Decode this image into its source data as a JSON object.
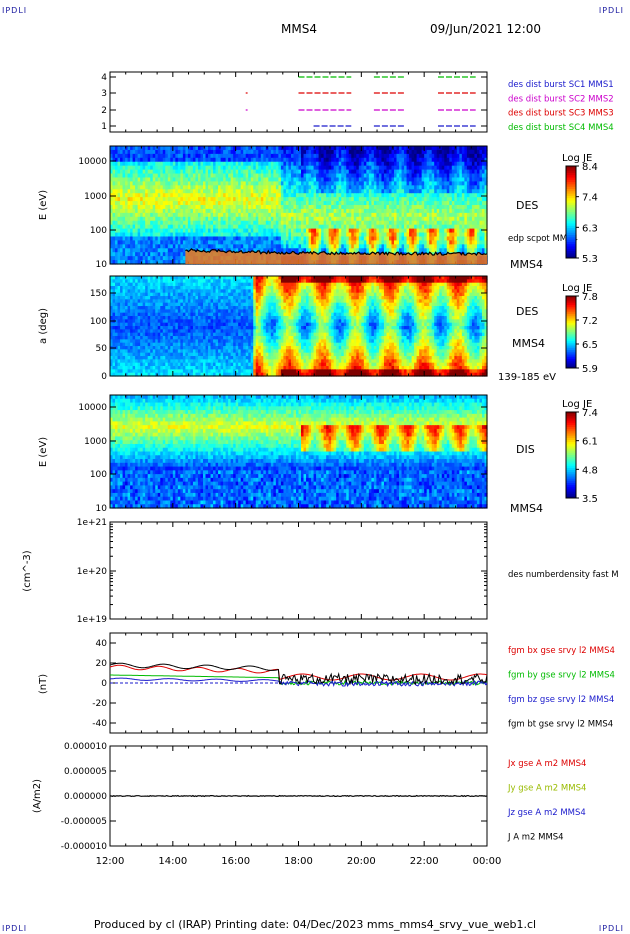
{
  "header": {
    "corner_text": "IPDLI",
    "spacecraft": "MMS4",
    "date": "09/Jun/2021 12:00"
  },
  "footer": {
    "text": "Produced by cl (IRAP)   Printing date: 04/Dec/2023   mms_mms4_srvy_vue_web1.cl"
  },
  "chart_data": [
    {
      "panel": "burst",
      "type": "line",
      "yticks": [
        "1",
        "2",
        "3",
        "4"
      ],
      "legend": [
        {
          "label": "des dist burst SC1 MMS1",
          "color": "#1a1acc"
        },
        {
          "label": "des dist burst SC2 MMS2",
          "color": "#cc00cc"
        },
        {
          "label": "des dist burst SC3 MMS3",
          "color": "#dd0000"
        },
        {
          "label": "des dist burst SC4 MMS4",
          "color": "#00bb00"
        }
      ]
    },
    {
      "panel": "des_energy",
      "type": "heatmap",
      "ylabel": "E (eV)",
      "ylog": true,
      "ylim": [
        10,
        30000
      ],
      "yticks": [
        "10",
        "100",
        "1000",
        "10000"
      ],
      "right_labels": [
        "DES",
        "edp scpot MMS4",
        "MMS4"
      ],
      "colorbar": {
        "title": "Log JE",
        "ticks": [
          "8.4",
          "7.4",
          "6.3",
          "5.3"
        ]
      }
    },
    {
      "panel": "des_pitch",
      "type": "heatmap",
      "ylabel": "a (deg)",
      "ylim": [
        0,
        180
      ],
      "yticks": [
        "0",
        "50",
        "100",
        "150"
      ],
      "right_labels": [
        "DES",
        "MMS4",
        "139-185 eV"
      ],
      "colorbar": {
        "title": "Log JE",
        "ticks": [
          "7.8",
          "7.2",
          "6.5",
          "5.9"
        ]
      }
    },
    {
      "panel": "dis_energy",
      "type": "heatmap",
      "ylabel": "E (eV)",
      "ylog": true,
      "ylim": [
        10,
        20000
      ],
      "yticks": [
        "10",
        "100",
        "1000",
        "10000"
      ],
      "right_labels": [
        "DIS",
        "MMS4"
      ],
      "colorbar": {
        "title": "Log JE",
        "ticks": [
          "7.4",
          "6.1",
          "4.8",
          "3.5"
        ]
      }
    },
    {
      "panel": "density",
      "type": "line",
      "ylabel": "(cm^-3)",
      "ylog": true,
      "yticks": [
        "1e+19",
        "1e+20",
        "1e+21"
      ],
      "legend": [
        {
          "label": "des numberdensity fast M",
          "color": "#000000"
        }
      ]
    },
    {
      "panel": "fgm",
      "type": "line",
      "ylabel": "(nT)",
      "ylim": [
        -50,
        50
      ],
      "yticks": [
        "-40",
        "-20",
        "0",
        "20",
        "40"
      ],
      "legend": [
        {
          "label": "fgm bx gse srvy l2 MMS4",
          "color": "#dd0000"
        },
        {
          "label": "fgm by gse srvy l2 MMS4",
          "color": "#00bb00"
        },
        {
          "label": "fgm bz gse srvy l2 MMS4",
          "color": "#1a1acc"
        },
        {
          "label": "fgm bt gse srvy l2 MMS4",
          "color": "#000000"
        }
      ]
    },
    {
      "panel": "current",
      "type": "line",
      "ylabel": "(A/m2)",
      "ylim": [
        -1e-05,
        1e-05
      ],
      "yticks": [
        "-0.000010",
        "-0.000005",
        "0.000000",
        "0.000005",
        "0.000010"
      ],
      "legend": [
        {
          "label": "Jx gse A m2 MMS4",
          "color": "#dd0000"
        },
        {
          "label": "Jy gse A m2 MMS4",
          "color": "#99bb00"
        },
        {
          "label": "Jz gse A m2 MMS4",
          "color": "#1a1acc"
        },
        {
          "label": "J A m2 MMS4",
          "color": "#000000"
        }
      ]
    }
  ],
  "time_axis": {
    "ticks": [
      "12:00",
      "14:00",
      "16:00",
      "18:00",
      "20:00",
      "22:00",
      "00:00"
    ]
  }
}
